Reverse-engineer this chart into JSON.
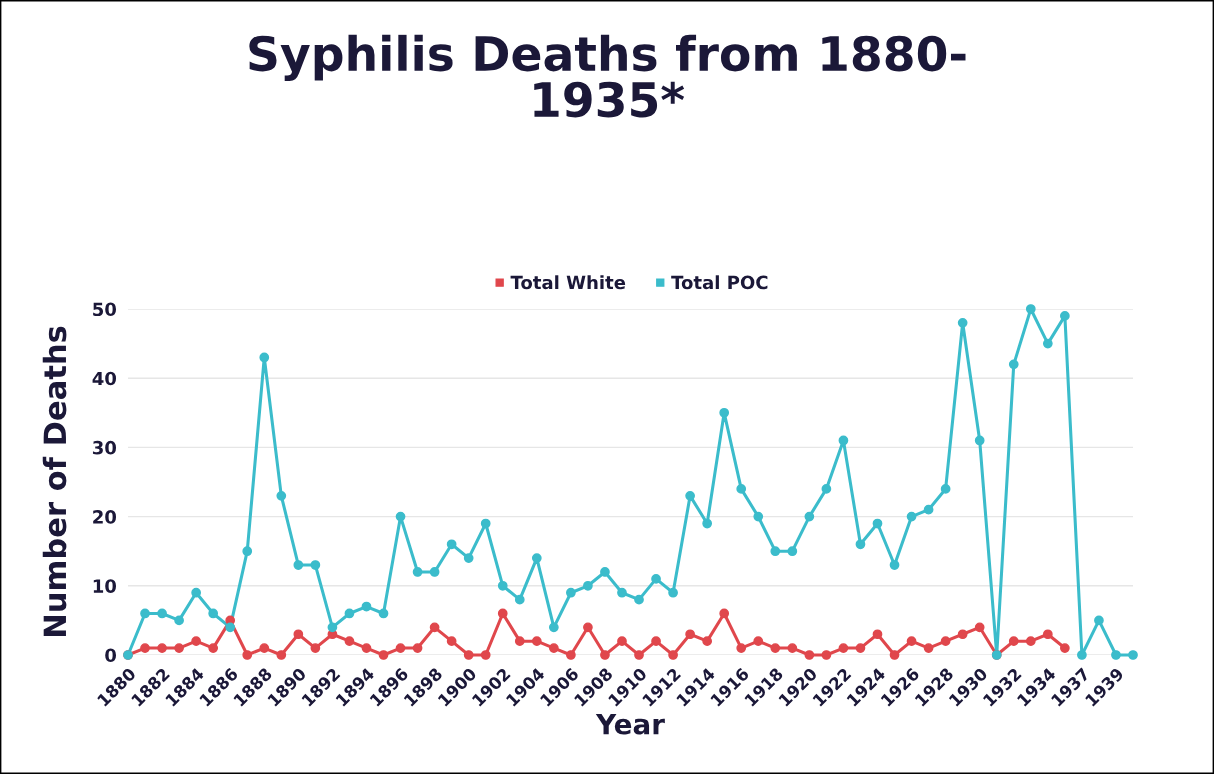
{
  "chart_data": {
    "type": "line",
    "title": "Syphilis Deaths from 1880-\n1935*",
    "xlabel": "Year",
    "ylabel": "Number of Deaths",
    "categories": [
      "1880",
      null,
      "1882",
      null,
      "1884",
      null,
      "1886",
      null,
      "1888",
      null,
      "1890",
      null,
      "1892",
      null,
      "1894",
      null,
      "1896",
      null,
      "1898",
      null,
      "1900",
      null,
      "1902",
      null,
      "1904",
      null,
      "1906",
      null,
      "1908",
      null,
      "1910",
      null,
      "1912",
      null,
      "1914",
      null,
      "1916",
      null,
      "1918",
      null,
      "1920",
      null,
      "1922",
      null,
      "1924",
      null,
      "1926",
      null,
      "1928",
      null,
      "1930",
      null,
      "1932",
      null,
      "1934",
      null,
      "1937",
      null,
      "1939",
      null
    ],
    "series": [
      {
        "name": "Total White",
        "color": "#e0474c",
        "values": [
          0,
          1,
          1,
          1,
          2,
          1,
          5,
          0,
          1,
          0,
          3,
          1,
          3,
          2,
          1,
          0,
          1,
          1,
          4,
          2,
          0,
          0,
          6,
          2,
          2,
          1,
          0,
          4,
          0,
          2,
          0,
          2,
          0,
          3,
          2,
          6,
          1,
          2,
          1,
          1,
          0,
          0,
          1,
          1,
          3,
          0,
          2,
          1,
          2,
          3,
          4,
          0,
          2,
          2,
          3,
          1,
          null,
          null,
          null,
          null
        ]
      },
      {
        "name": "Total POC",
        "color": "#3bbccb",
        "values": [
          0,
          6,
          6,
          5,
          9,
          6,
          4,
          15,
          43,
          23,
          13,
          13,
          4,
          6,
          7,
          6,
          20,
          12,
          12,
          16,
          14,
          19,
          10,
          8,
          14,
          4,
          9,
          10,
          12,
          9,
          8,
          11,
          9,
          23,
          19,
          35,
          24,
          20,
          15,
          15,
          20,
          24,
          31,
          16,
          19,
          13,
          20,
          21,
          24,
          48,
          31,
          0,
          42,
          50,
          45,
          49,
          0,
          5,
          0,
          0
        ]
      }
    ],
    "ylim": [
      0,
      50
    ],
    "yticks": [
      0,
      10,
      20,
      30,
      40,
      50
    ],
    "grid": "y",
    "legend": "top",
    "marker": "circle",
    "line_style": "solid"
  }
}
